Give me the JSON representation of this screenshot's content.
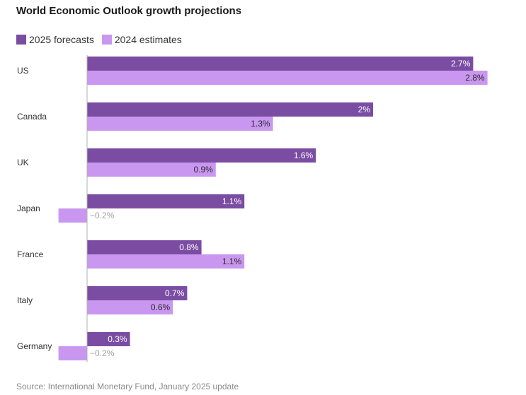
{
  "chart_data": {
    "type": "bar",
    "orientation": "horizontal",
    "title": "World Economic Outlook growth projections",
    "categories": [
      "US",
      "Canada",
      "UK",
      "Japan",
      "France",
      "Italy",
      "Germany"
    ],
    "series": [
      {
        "name": "2025 forecasts",
        "values": [
          2.7,
          2.0,
          1.6,
          1.1,
          0.8,
          0.7,
          0.3
        ],
        "labels": [
          "2.7%",
          "2%",
          "1.6%",
          "1.1%",
          "0.8%",
          "0.7%",
          "0.3%"
        ]
      },
      {
        "name": "2024 estimates",
        "values": [
          2.8,
          1.3,
          0.9,
          -0.2,
          1.1,
          0.6,
          -0.2
        ],
        "labels": [
          "2.8%",
          "1.3%",
          "0.9%",
          "−0.2%",
          "1.1%",
          "0.6%",
          "−0.2%"
        ]
      }
    ],
    "xlim": [
      -0.2,
      2.8
    ],
    "legend_position": "top-left",
    "grid": false,
    "colors": {
      "2025 forecasts": "#7a4da3",
      "2024 estimates": "#c997f0"
    }
  },
  "source": "Source: International Monetary Fund, January 2025 update"
}
